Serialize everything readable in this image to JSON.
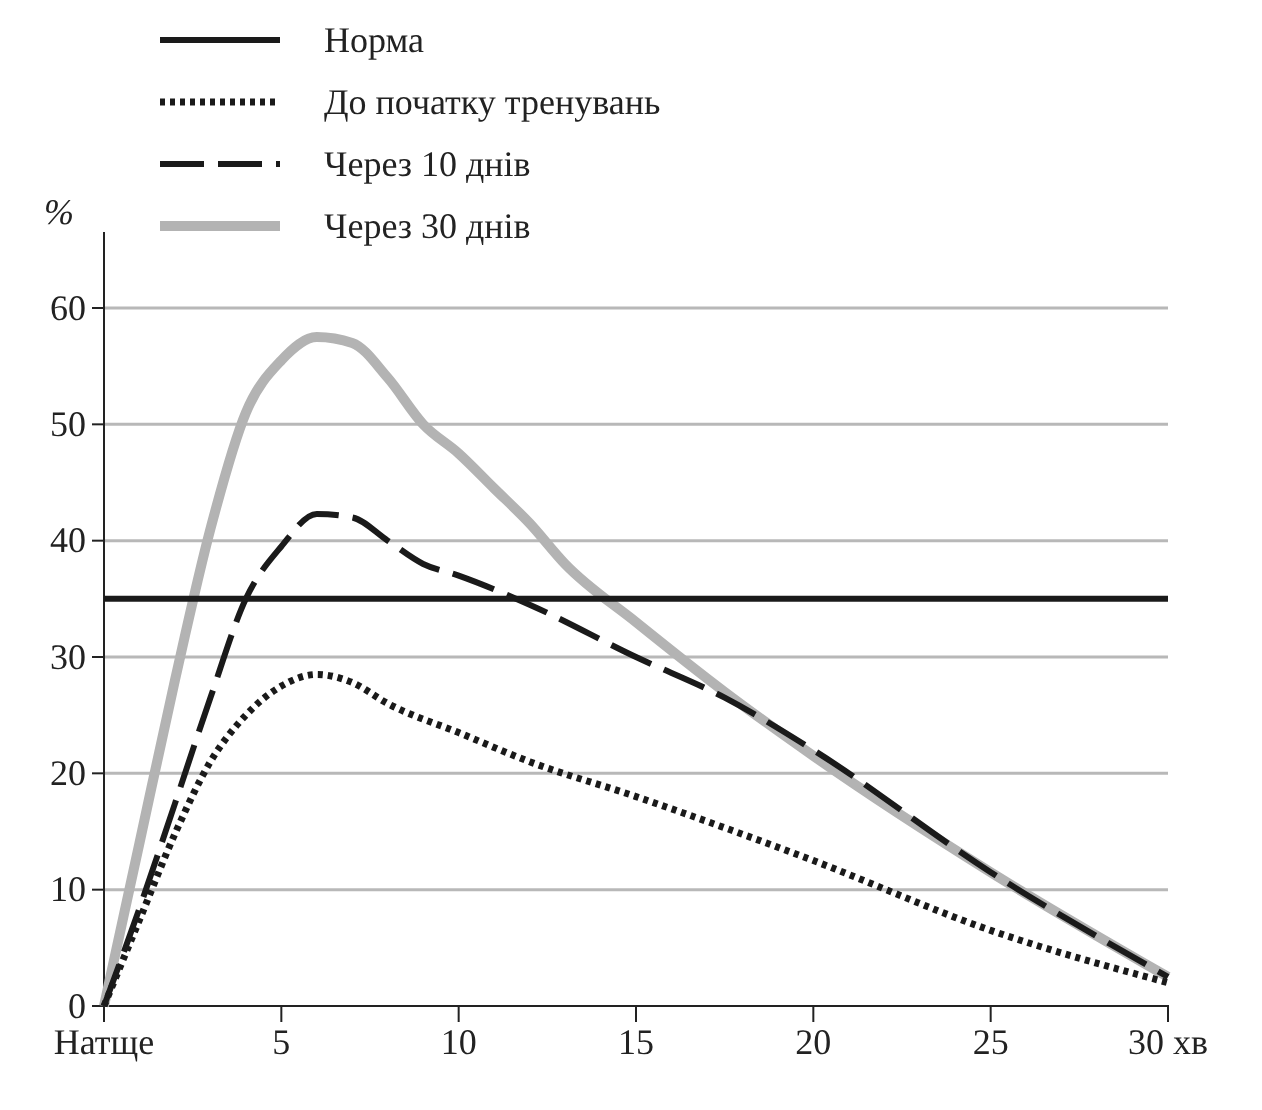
{
  "chart_data": {
    "type": "line",
    "ylabel": "%",
    "xlim": [
      0,
      30
    ],
    "ylim": [
      0,
      60
    ],
    "xticks": [
      {
        "value": 0,
        "label": "Натще"
      },
      5,
      10,
      15,
      20,
      25,
      {
        "value": 30,
        "label": "30 хв"
      }
    ],
    "yticks": [
      0,
      10,
      20,
      30,
      40,
      50,
      60
    ],
    "grid": "y",
    "legend": "top",
    "marker": "none",
    "series": [
      {
        "name": "Норма",
        "color": "#1a1a1a",
        "line_style": "solid",
        "x": [
          0,
          30
        ],
        "values": [
          35,
          35
        ]
      },
      {
        "name": "До початку тренувань",
        "color": "#1a1a1a",
        "line_style": "dotted",
        "x": [
          0,
          1,
          2,
          3,
          4,
          5,
          6,
          7,
          8,
          10,
          12,
          15,
          20,
          25,
          30
        ],
        "values": [
          0,
          7.4,
          14.8,
          21,
          25,
          27.5,
          28.5,
          27.8,
          26,
          23.5,
          21,
          18,
          12.5,
          6.5,
          2
        ]
      },
      {
        "name": "Через 10 днів",
        "color": "#1a1a1a",
        "line_style": "dashed",
        "x": [
          0,
          1,
          2,
          3,
          4,
          5,
          6,
          7,
          8,
          9,
          10,
          12,
          15,
          17.5,
          20,
          25,
          30
        ],
        "values": [
          0,
          8.4,
          17.4,
          26.5,
          35,
          39.5,
          42.3,
          42,
          40,
          38,
          37,
          34.5,
          30,
          26.5,
          22,
          11.5,
          2.5
        ]
      },
      {
        "name": "Через 30 днів",
        "color": "#b3b3b3",
        "line_style": "solid",
        "x": [
          0,
          1,
          2,
          3,
          4,
          5,
          6,
          7,
          8,
          9,
          10,
          11,
          12,
          13,
          15,
          17.5,
          20,
          25,
          30
        ],
        "values": [
          0,
          14,
          28,
          41,
          51,
          55.5,
          57.5,
          57,
          54,
          50,
          47.5,
          44.5,
          41.5,
          38,
          33,
          27,
          21.5,
          11.5,
          2.5
        ]
      }
    ]
  }
}
